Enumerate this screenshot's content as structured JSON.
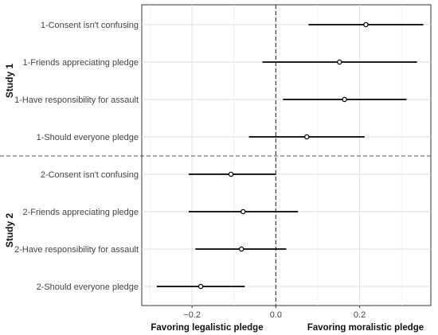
{
  "chart_data": {
    "type": "forest",
    "title": "",
    "xlim": [
      -0.32,
      0.37
    ],
    "x_ticks": [
      -0.2,
      0.0,
      0.2
    ],
    "x_tick_labels": [
      "−0.2",
      "0.0",
      "0.2"
    ],
    "x_annotations": {
      "left": "Favoring legalistic pledge",
      "right": "Favoring moralistic pledge"
    },
    "reference_line_x": 0,
    "grid": true,
    "groups": [
      {
        "name": "Study 1",
        "items": [
          {
            "label": "1-Consent isn't confusing",
            "estimate": 0.215,
            "lower": 0.078,
            "upper": 0.352
          },
          {
            "label": "1-Friends appreciating pledge",
            "estimate": 0.152,
            "lower": -0.032,
            "upper": 0.337
          },
          {
            "label": "1-Have responsibility for assault",
            "estimate": 0.164,
            "lower": 0.017,
            "upper": 0.312
          },
          {
            "label": "1-Should everyone pledge",
            "estimate": 0.074,
            "lower": -0.064,
            "upper": 0.212
          }
        ]
      },
      {
        "name": "Study 2",
        "items": [
          {
            "label": "2-Consent isn't confusing",
            "estimate": -0.107,
            "lower": -0.208,
            "upper": 0.0
          },
          {
            "label": "2-Friends appreciating pledge",
            "estimate": -0.078,
            "lower": -0.208,
            "upper": 0.053
          },
          {
            "label": "2-Have responsibility for assault",
            "estimate": -0.082,
            "lower": -0.192,
            "upper": 0.025
          },
          {
            "label": "2-Should everyone pledge",
            "estimate": -0.179,
            "lower": -0.284,
            "upper": -0.074
          }
        ]
      }
    ]
  }
}
